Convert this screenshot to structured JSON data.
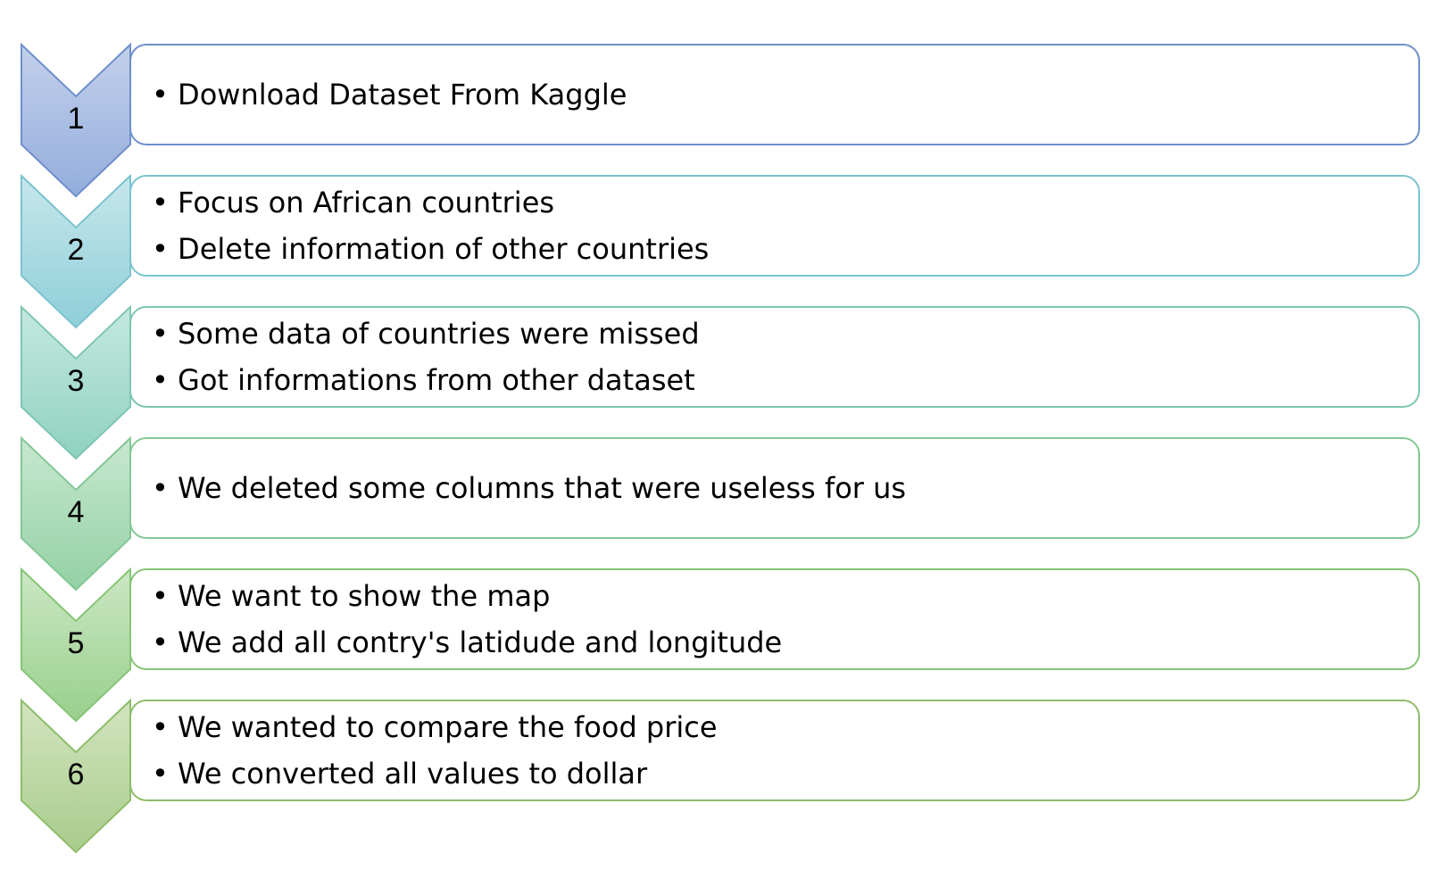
{
  "steps": [
    {
      "number": "1",
      "bullets": [
        "Download Dataset From Kaggle"
      ],
      "colors": {
        "fill_top": "#c3d1ea",
        "fill_bottom": "#93addd",
        "border": "#6f8fcb"
      }
    },
    {
      "number": "2",
      "bullets": [
        "Focus on African countries",
        "Delete information of other countries"
      ],
      "colors": {
        "fill_top": "#c6e7ec",
        "fill_bottom": "#8fcfd9",
        "border": "#7cc3cf"
      }
    },
    {
      "number": "3",
      "bullets": [
        "Some data of countries were missed",
        "Got informations from other dataset"
      ],
      "colors": {
        "fill_top": "#c5e9df",
        "fill_bottom": "#8fd1c0",
        "border": "#7ec6b3"
      }
    },
    {
      "number": "4",
      "bullets": [
        "We deleted some columns that were useless for us"
      ],
      "colors": {
        "fill_top": "#c8e8cf",
        "fill_bottom": "#93d1a4",
        "border": "#84c796"
      }
    },
    {
      "number": "5",
      "bullets": [
        "We want to show the map",
        "We add all contry's latidude and longitude"
      ],
      "colors": {
        "fill_top": "#cbe7c4",
        "fill_bottom": "#99cf8c",
        "border": "#86c577"
      }
    },
    {
      "number": "6",
      "bullets": [
        "We wanted to compare the food price",
        "We converted all values to dollar"
      ],
      "colors": {
        "fill_top": "#d2e4c0",
        "fill_bottom": "#a8cc8b",
        "border": "#8fbd6b"
      }
    }
  ]
}
